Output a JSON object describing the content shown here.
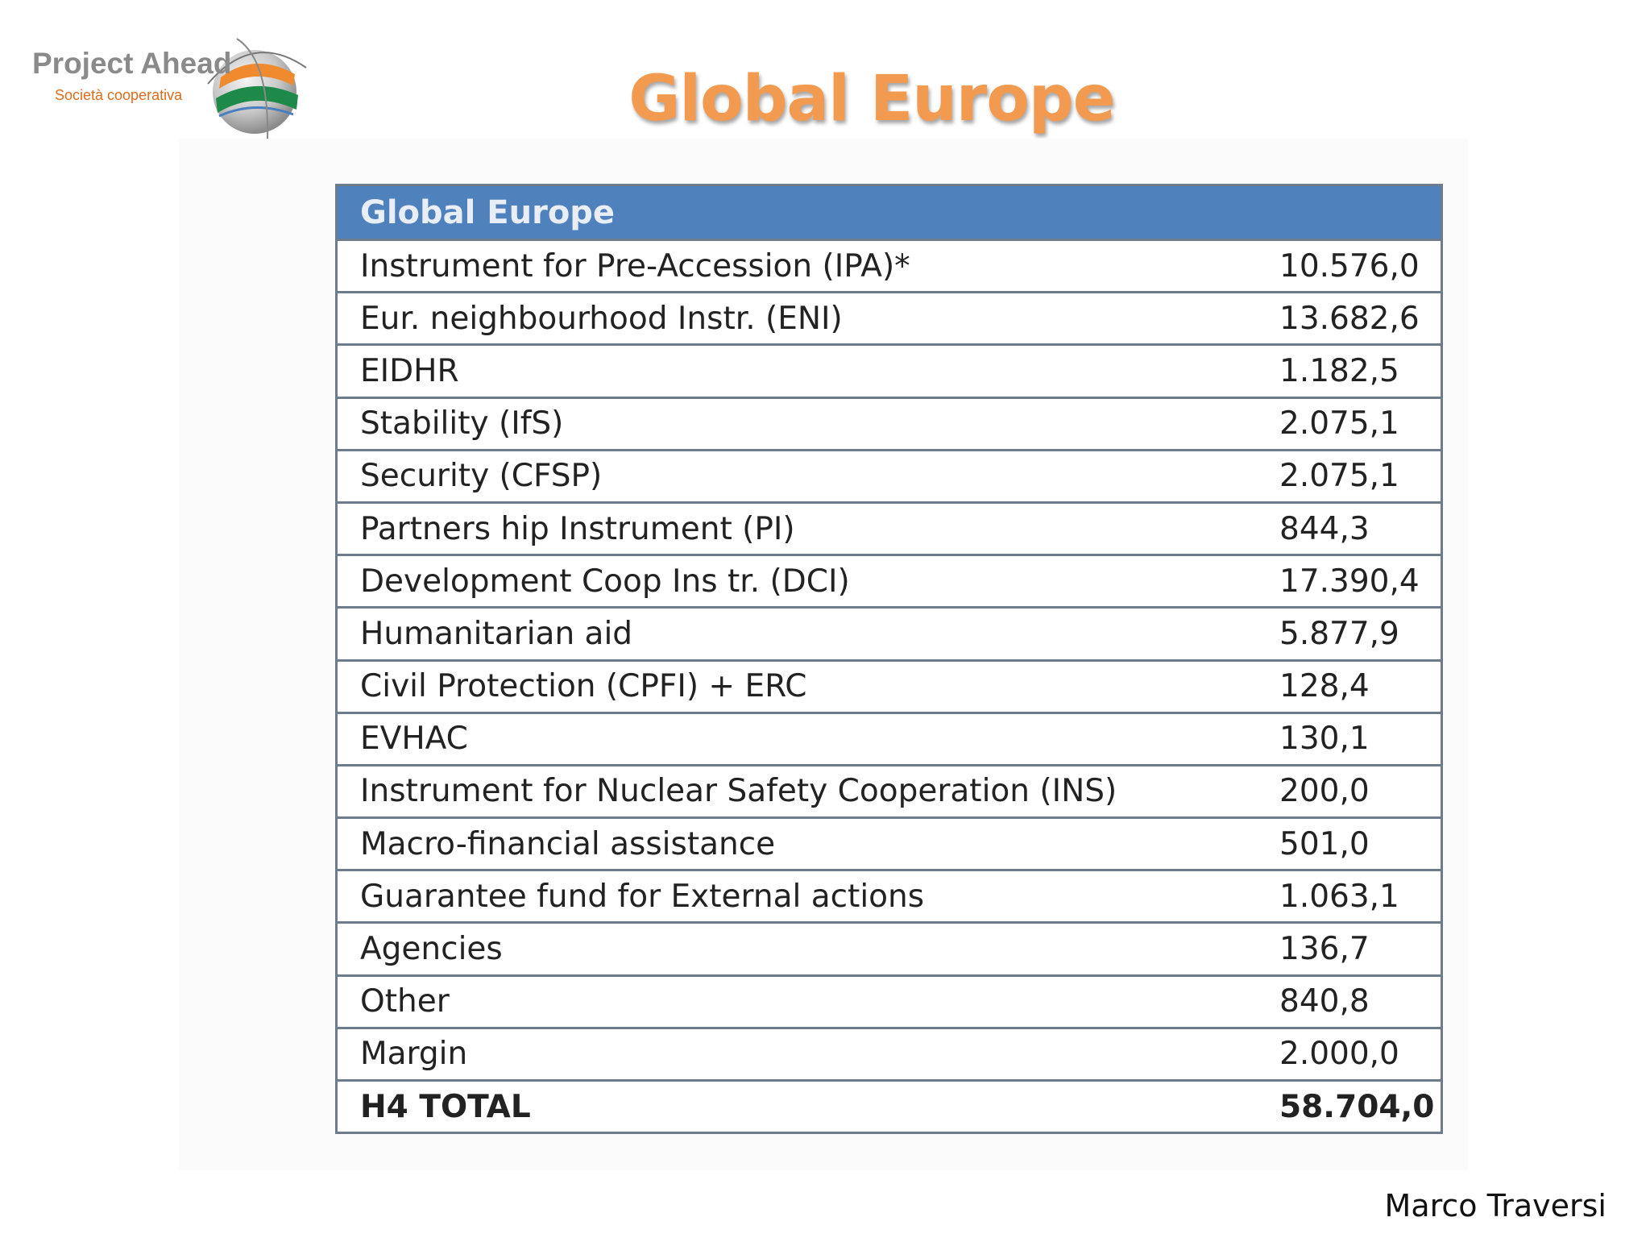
{
  "logo": {
    "title": "Project Ahead",
    "subtitle": "Società cooperativa",
    "colors": {
      "title": "#8a8a8a",
      "accent": "#e06b1a",
      "green": "#1e8a4a"
    }
  },
  "slide": {
    "title": "Global Europe",
    "title_color": "#f29a4f",
    "author": "Marco Traversi"
  },
  "table": {
    "header": "Global Europe",
    "header_color": "#4f81bd",
    "rows": [
      {
        "label": "Instrument for Pre-Accession (IPA)*",
        "value": "10.576,0"
      },
      {
        "label": "Eur. neighbourhood Instr. (ENI)",
        "value": "13.682,6"
      },
      {
        "label": "EIDHR",
        "value": "1.182,5"
      },
      {
        "label": "Stability (IfS)",
        "value": "2.075,1"
      },
      {
        "label": "Security (CFSP)",
        "value": "2.075,1"
      },
      {
        "label": "Partners hip Instrument (PI)",
        "value": "844,3"
      },
      {
        "label": "Development Coop Ins tr. (DCI)",
        "value": "17.390,4"
      },
      {
        "label": "Humanitarian aid",
        "value": "5.877,9"
      },
      {
        "label": "Civil Protection (CPFI) + ERC",
        "value": "128,4"
      },
      {
        "label": "EVHAC",
        "value": "130,1"
      },
      {
        "label": "Instrument for Nuclear Safety Cooperation (INS)",
        "value": "200,0"
      },
      {
        "label": "Macro-financial assistance",
        "value": "501,0"
      },
      {
        "label": "Guarantee fund for External actions",
        "value": "1.063,1"
      },
      {
        "label": "Agencies",
        "value": "136,7"
      },
      {
        "label": "Other",
        "value": "840,8"
      },
      {
        "label": "Margin",
        "value": "2.000,0"
      }
    ],
    "total": {
      "label": "H4 TOTAL",
      "value": "58.704,0"
    }
  }
}
